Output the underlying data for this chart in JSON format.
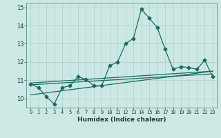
{
  "xlabel": "Humidex (Indice chaleur)",
  "ylabel": "",
  "xlim": [
    -0.5,
    23.5
  ],
  "ylim": [
    9.5,
    15.25
  ],
  "yticks": [
    10,
    11,
    12,
    13,
    14,
    15
  ],
  "xticks": [
    0,
    1,
    2,
    3,
    4,
    5,
    6,
    7,
    8,
    9,
    10,
    11,
    12,
    13,
    14,
    15,
    16,
    17,
    18,
    19,
    20,
    21,
    22,
    23
  ],
  "xtick_labels": [
    "0",
    "1",
    "2",
    "3",
    "4",
    "5",
    "6",
    "7",
    "8",
    "9",
    "10",
    "11",
    "12",
    "13",
    "14",
    "15",
    "16",
    "17",
    "18",
    "19",
    "20",
    "21",
    "22",
    "23"
  ],
  "bg_color": "#cce8e5",
  "grid_color": "#b0cecc",
  "line_color": "#1a6b5a",
  "line1_x": [
    0,
    1,
    2,
    3,
    4,
    5,
    6,
    7,
    8,
    9,
    10,
    11,
    12,
    13,
    14,
    15,
    16,
    17,
    18,
    19,
    20,
    21,
    22,
    23
  ],
  "line1_y": [
    10.8,
    10.6,
    10.1,
    9.7,
    10.6,
    10.7,
    11.2,
    11.05,
    10.7,
    10.7,
    11.8,
    12.0,
    13.0,
    13.3,
    14.9,
    14.4,
    13.9,
    12.7,
    11.6,
    11.75,
    11.7,
    11.6,
    12.1,
    11.2
  ],
  "line2_x": [
    0,
    23
  ],
  "line2_y": [
    10.75,
    11.35
  ],
  "line3_x": [
    0,
    23
  ],
  "line3_y": [
    10.85,
    11.5
  ],
  "line4_x": [
    0,
    23
  ],
  "line4_y": [
    10.2,
    11.5
  ],
  "marker": "D",
  "markersize": 2.5,
  "linewidth": 0.9
}
